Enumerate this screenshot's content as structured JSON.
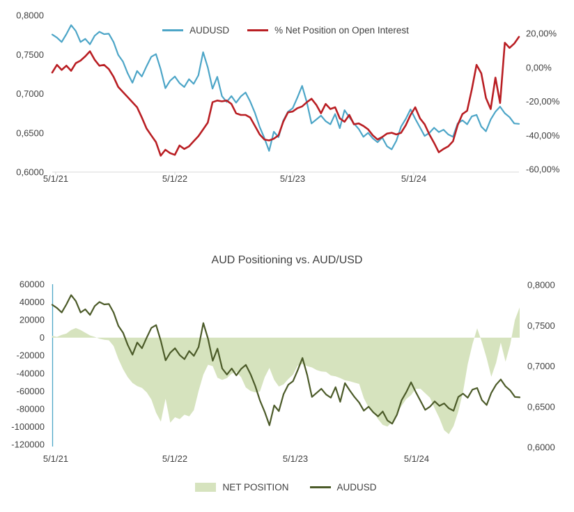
{
  "page": {
    "background": "#ffffff",
    "text_color": "#404040",
    "axis_line_color": "#d9d9d9"
  },
  "chart_data": [
    {
      "type": "line",
      "title": "",
      "legend_position": "top-center",
      "grid": false,
      "x_axis": {
        "tick_labels": [
          "5/1/21",
          "5/1/22",
          "5/1/23",
          "5/1/24"
        ]
      },
      "left_axis": {
        "range": [
          0.6,
          0.8
        ],
        "tick_labels": [
          "0,8000",
          "0,7500",
          "0,7000",
          "0,6500",
          "0,6000"
        ],
        "tick_values": [
          0.8,
          0.75,
          0.7,
          0.65,
          0.6
        ]
      },
      "right_axis": {
        "range": [
          -60,
          20
        ],
        "tick_labels": [
          "20,00%",
          "0,00%",
          "-20,00%",
          "-40,00%",
          "-60,00%"
        ],
        "tick_values": [
          20,
          0,
          -20,
          -40,
          -60
        ]
      },
      "series": [
        {
          "name": "AUDUSD",
          "type": "line",
          "axis": "left",
          "color": "#4ca5c7",
          "values": [
            0.7755,
            0.7715,
            0.766,
            0.776,
            0.7875,
            0.78,
            0.766,
            0.77,
            0.763,
            0.774,
            0.779,
            0.776,
            0.7765,
            0.766,
            0.7495,
            0.741,
            0.726,
            0.714,
            0.729,
            0.722,
            0.735,
            0.747,
            0.7505,
            0.731,
            0.707,
            0.7165,
            0.722,
            0.7135,
            0.7085,
            0.7185,
            0.7125,
            0.7235,
            0.753,
            0.7335,
            0.7065,
            0.7215,
            0.697,
            0.6895,
            0.697,
            0.6885,
            0.6965,
            0.7015,
            0.69,
            0.6755,
            0.6575,
            0.6435,
            0.627,
            0.6515,
            0.6445,
            0.6655,
            0.677,
            0.6815,
            0.695,
            0.71,
            0.689,
            0.662,
            0.667,
            0.672,
            0.665,
            0.661,
            0.674,
            0.656,
            0.679,
            0.67,
            0.662,
            0.655,
            0.645,
            0.65,
            0.643,
            0.638,
            0.644,
            0.633,
            0.629,
            0.64,
            0.658,
            0.668,
            0.68,
            0.668,
            0.657,
            0.646,
            0.65,
            0.6565,
            0.651,
            0.654,
            0.648,
            0.645,
            0.662,
            0.666,
            0.661,
            0.671,
            0.673,
            0.658,
            0.652,
            0.667,
            0.677,
            0.6835,
            0.675,
            0.67,
            0.662,
            0.6615
          ]
        },
        {
          "name": "% Net Position on Open Interest",
          "type": "line",
          "axis": "right",
          "color": "#b91e23",
          "values": [
            -3,
            1.5,
            -1.5,
            1,
            -2,
            2.5,
            4,
            6.5,
            9.5,
            4.5,
            1,
            1.5,
            -1,
            -5.5,
            -11.5,
            -14.5,
            -17.5,
            -20.5,
            -23.5,
            -29.5,
            -36,
            -40,
            -44,
            -52,
            -48.5,
            -50.5,
            -51.5,
            -46,
            -48,
            -46.5,
            -43.5,
            -40.5,
            -36.5,
            -32.5,
            -20.5,
            -19.5,
            -20,
            -19.5,
            -21.5,
            -27,
            -28,
            -28,
            -29.5,
            -34.5,
            -39.5,
            -42.5,
            -43,
            -42,
            -40,
            -32,
            -26.5,
            -26,
            -24,
            -23,
            -20.5,
            -18.5,
            -22,
            -27,
            -21.5,
            -24.5,
            -23.5,
            -30,
            -32,
            -28,
            -33.5,
            -33,
            -34.5,
            -36.5,
            -40,
            -42.5,
            -41,
            -39,
            -38.5,
            -39.5,
            -38.5,
            -34,
            -28,
            -23.5,
            -30,
            -33.5,
            -39.5,
            -44.5,
            -50,
            -48,
            -46.5,
            -43.5,
            -34,
            -27.5,
            -25.5,
            -13,
            1.5,
            -3.5,
            -18,
            -24.5,
            -6,
            -21,
            14.5,
            11.5,
            14,
            18
          ]
        }
      ]
    },
    {
      "type": "combo",
      "title": "AUD Positioning vs. AUD/USD",
      "legend_position": "bottom-center",
      "grid": false,
      "left_axis_line_color": "#4ca5c7",
      "x_axis": {
        "tick_labels": [
          "5/1/21",
          "5/1/22",
          "5/1/23",
          "5/1/24"
        ]
      },
      "left_axis": {
        "range": [
          -120000,
          60000
        ],
        "tick_labels": [
          "60000",
          "40000",
          "20000",
          "0",
          "-20000",
          "-40000",
          "-60000",
          "-80000",
          "-100000",
          "-120000"
        ],
        "tick_values": [
          60000,
          40000,
          20000,
          0,
          -20000,
          -40000,
          -60000,
          -80000,
          -100000,
          -120000
        ]
      },
      "right_axis": {
        "range": [
          0.6,
          0.8
        ],
        "tick_labels": [
          "0,8000",
          "0,7500",
          "0,7000",
          "0,6500",
          "0,6000"
        ],
        "tick_values": [
          0.8,
          0.75,
          0.7,
          0.65,
          0.6
        ]
      },
      "series": [
        {
          "name": "NET POSITION",
          "type": "area",
          "axis": "left",
          "color": "#d6e3be",
          "values": [
            2000,
            800,
            3000,
            4500,
            8500,
            10800,
            8500,
            5500,
            2500,
            800,
            -1200,
            -2400,
            -3000,
            -9500,
            -24000,
            -35500,
            -44500,
            -51000,
            -54500,
            -56500,
            -61500,
            -69500,
            -84500,
            -94500,
            -68500,
            -95500,
            -89500,
            -91500,
            -86500,
            -88500,
            -81500,
            -60000,
            -41500,
            -30500,
            -32000,
            -45000,
            -47500,
            -45500,
            -40500,
            -38500,
            -44500,
            -56000,
            -60000,
            -61500,
            -60500,
            -44500,
            -34000,
            -47500,
            -55000,
            -52500,
            -46500,
            -41500,
            -31500,
            -29500,
            -32000,
            -33500,
            -36500,
            -38000,
            -38500,
            -42500,
            -43500,
            -45500,
            -48000,
            -49000,
            -50500,
            -52000,
            -68000,
            -78500,
            -83500,
            -91500,
            -98000,
            -100000,
            -94500,
            -86000,
            -76500,
            -69000,
            -64500,
            -57500,
            -57500,
            -62500,
            -67500,
            -79500,
            -90500,
            -104000,
            -108500,
            -99500,
            -83000,
            -61000,
            -30000,
            -7500,
            10500,
            -5000,
            -23000,
            -44000,
            -28500,
            -5500,
            -27000,
            -8000,
            20000,
            34000
          ]
        },
        {
          "name": "AUDUSD",
          "type": "line",
          "axis": "right",
          "color": "#4b5a28",
          "values": [
            0.7755,
            0.7715,
            0.766,
            0.776,
            0.7875,
            0.78,
            0.766,
            0.77,
            0.763,
            0.774,
            0.779,
            0.776,
            0.7765,
            0.766,
            0.7495,
            0.741,
            0.726,
            0.714,
            0.729,
            0.722,
            0.735,
            0.747,
            0.7505,
            0.731,
            0.707,
            0.7165,
            0.722,
            0.7135,
            0.7085,
            0.7185,
            0.7125,
            0.7235,
            0.753,
            0.7335,
            0.7065,
            0.7215,
            0.697,
            0.6895,
            0.697,
            0.6885,
            0.6965,
            0.7015,
            0.69,
            0.6755,
            0.6575,
            0.6435,
            0.627,
            0.6515,
            0.6445,
            0.6655,
            0.677,
            0.6815,
            0.695,
            0.71,
            0.689,
            0.662,
            0.667,
            0.672,
            0.665,
            0.661,
            0.674,
            0.656,
            0.679,
            0.67,
            0.662,
            0.655,
            0.645,
            0.65,
            0.643,
            0.638,
            0.644,
            0.633,
            0.629,
            0.64,
            0.658,
            0.668,
            0.68,
            0.668,
            0.657,
            0.646,
            0.65,
            0.6565,
            0.651,
            0.654,
            0.648,
            0.645,
            0.662,
            0.666,
            0.661,
            0.671,
            0.673,
            0.658,
            0.652,
            0.667,
            0.677,
            0.6835,
            0.675,
            0.67,
            0.662,
            0.6615
          ]
        }
      ]
    }
  ]
}
